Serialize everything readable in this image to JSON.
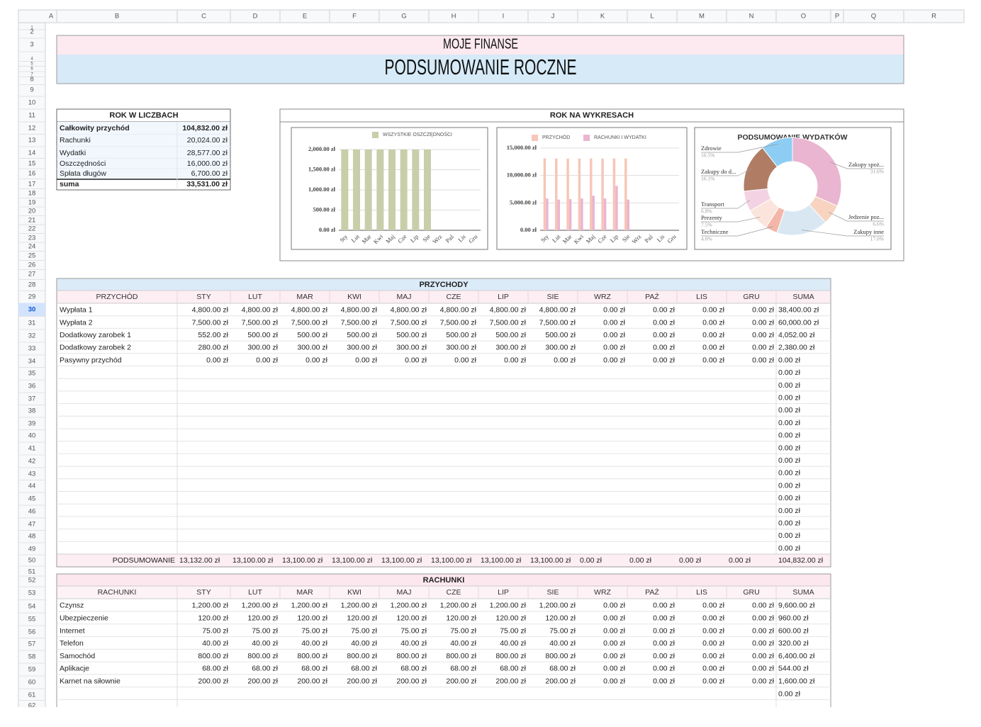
{
  "column_headers": [
    "A",
    "B",
    "C",
    "D",
    "E",
    "F",
    "G",
    "H",
    "I",
    "J",
    "K",
    "L",
    "M",
    "N",
    "O",
    "P",
    "Q",
    "R"
  ],
  "row_headers": [
    1,
    2,
    3,
    4,
    5,
    6,
    7,
    8,
    9,
    10,
    11,
    12,
    13,
    14,
    15,
    16,
    17,
    18,
    19,
    20,
    21,
    22,
    23,
    24,
    25,
    26,
    27,
    28,
    29,
    30,
    31,
    32,
    33,
    34,
    35,
    36,
    37,
    38,
    39,
    40,
    41,
    42,
    43,
    44,
    45,
    46,
    47,
    48,
    49,
    50,
    51,
    52,
    53,
    54,
    55,
    56,
    57,
    58,
    59,
    60,
    61,
    62
  ],
  "header": {
    "subtitle": "MOJE FINANSE",
    "title": "PODSUMOWANIE ROCZNE"
  },
  "summary": {
    "title": "ROK W LICZBACH",
    "rows": [
      [
        "Całkowity przychód",
        "104,832.00 zł"
      ],
      [
        "Rachunki",
        "20,024.00 zł"
      ],
      [
        "Wydatki",
        "28,577.00 zł"
      ],
      [
        "Oszczędności",
        "16,000.00 zł"
      ],
      [
        "Spłata długów",
        "6,700.00 zł"
      ],
      [
        "suma",
        "33,531.00 zł"
      ]
    ]
  },
  "charts_title": "ROK NA WYKRESACH",
  "charts": [
    {
      "type": "bar",
      "categories": [
        "Sty",
        "Lut",
        "Mar",
        "Kwi",
        "Maj",
        "Cze",
        "Lip",
        "Sie",
        "Wrz",
        "Paź",
        "Lis",
        "Gru"
      ],
      "series": [
        {
          "name": "WSZYSTKIE OSZCZĘDNOŚCI",
          "color": "#c9ceaa",
          "values": [
            2000,
            2000,
            2000,
            2000,
            2000,
            2000,
            2000,
            2000,
            0,
            0,
            0,
            0
          ]
        }
      ],
      "ylim": [
        0,
        2000
      ],
      "yticks": [
        {
          "value": 0,
          "label": "0.00 zł"
        },
        {
          "value": 500,
          "label": "500.00 zł"
        },
        {
          "value": 1000,
          "label": "1,000.00 zł"
        },
        {
          "value": 1500,
          "label": "1,500.00 zł"
        },
        {
          "value": 2000,
          "label": "2,000.00 zł"
        }
      ],
      "grid": true
    },
    {
      "type": "bar",
      "categories": [
        "Sty",
        "Lut",
        "Mar",
        "Kwi",
        "Maj",
        "Cze",
        "Lip",
        "Sie",
        "Wrz",
        "Paź",
        "Lis",
        "Gru"
      ],
      "series": [
        {
          "name": "PRZYCHÓD",
          "color": "#f6c6b8",
          "values": [
            13132,
            13100,
            13100,
            13100,
            13100,
            13100,
            13100,
            13100,
            0,
            0,
            0,
            0
          ]
        },
        {
          "name": "RACHUNKI I WYDATKI",
          "color": "#eab5d0",
          "values": [
            5800,
            5600,
            5700,
            5800,
            6300,
            5800,
            8100,
            5600,
            0,
            0,
            0,
            0
          ]
        }
      ],
      "ylim": [
        0,
        15000
      ],
      "yticks": [
        {
          "value": 0,
          "label": "0.00 zł"
        },
        {
          "value": 5000,
          "label": "5,000.00 zł"
        },
        {
          "value": 10000,
          "label": "10,000.00 zł"
        },
        {
          "value": 15000,
          "label": "15,000.00 zł"
        }
      ],
      "grid": true
    },
    {
      "type": "donut",
      "title": "PODSUMOWANIE WYDATKÓW",
      "categories": [
        "Zakupy spoż...",
        "Jedzenie poz...",
        "Zakupy inne",
        "Techniczne",
        "Prezenty",
        "Transport",
        "Zakupy do d...",
        "Zdrowie"
      ],
      "values": [
        31.6,
        6.6,
        17.0,
        4.0,
        7.5,
        6.8,
        16.1,
        10.5
      ],
      "value_labels": [
        "31.6%",
        "6.6%",
        "17.0%",
        "4.0%",
        "7.5%",
        "6.8%",
        "16.1%",
        "10.5%"
      ],
      "colors": [
        "#eab5d0",
        "#f7d3c0",
        "#d9e7f3",
        "#f4b6a8",
        "#fbe4dc",
        "#f3d3e3",
        "#b07d64",
        "#8dcdf3"
      ]
    }
  ],
  "income": {
    "title": "PRZYCHODY",
    "header": [
      "PRZYCHÓD",
      "STY",
      "LUT",
      "MAR",
      "KWI",
      "MAJ",
      "CZE",
      "LIP",
      "SIE",
      "WRZ",
      "PAŹ",
      "LIS",
      "GRU",
      "SUMA"
    ],
    "rows": [
      [
        "Wypłata 1",
        "4,800.00 zł",
        "4,800.00 zł",
        "4,800.00 zł",
        "4,800.00 zł",
        "4,800.00 zł",
        "4,800.00 zł",
        "4,800.00 zł",
        "4,800.00 zł",
        "0.00 zł",
        "0.00 zł",
        "0.00 zł",
        "0.00 zł",
        "38,400.00 zł"
      ],
      [
        "Wypłata 2",
        "7,500.00 zł",
        "7,500.00 zł",
        "7,500.00 zł",
        "7,500.00 zł",
        "7,500.00 zł",
        "7,500.00 zł",
        "7,500.00 zł",
        "7,500.00 zł",
        "0.00 zł",
        "0.00 zł",
        "0.00 zł",
        "0.00 zł",
        "60,000.00 zł"
      ],
      [
        "Dodatkowy zarobek 1",
        "552.00 zł",
        "500.00 zł",
        "500.00 zł",
        "500.00 zł",
        "500.00 zł",
        "500.00 zł",
        "500.00 zł",
        "500.00 zł",
        "0.00 zł",
        "0.00 zł",
        "0.00 zł",
        "0.00 zł",
        "4,052.00 zł"
      ],
      [
        "Dodatkowy zarobek 2",
        "280.00 zł",
        "300.00 zł",
        "300.00 zł",
        "300.00 zł",
        "300.00 zł",
        "300.00 zł",
        "300.00 zł",
        "300.00 zł",
        "0.00 zł",
        "0.00 zł",
        "0.00 zł",
        "0.00 zł",
        "2,380.00 zł"
      ],
      [
        "Pasywny przychód",
        "0.00 zł",
        "0.00 zł",
        "0.00 zł",
        "0.00 zł",
        "0.00 zł",
        "0.00 zł",
        "0.00 zł",
        "0.00 zł",
        "0.00 zł",
        "0.00 zł",
        "0.00 zł",
        "0.00 zł",
        "0.00 zł"
      ]
    ],
    "empty_sums": [
      "0.00 zł",
      "0.00 zł",
      "0.00 zł",
      "0.00 zł",
      "0.00 zł",
      "0.00 zł",
      "0.00 zł",
      "0.00 zł",
      "0.00 zł",
      "0.00 zł",
      "0.00 zł",
      "0.00 zł",
      "0.00 zł",
      "0.00 zł",
      "0.00 zł"
    ],
    "total": [
      "PODSUMOWANIE",
      "13,132.00 zł",
      "13,100.00 zł",
      "13,100.00 zł",
      "13,100.00 zł",
      "13,100.00 zł",
      "13,100.00 zł",
      "13,100.00 zł",
      "13,100.00 zł",
      "0.00 zł",
      "0.00 zł",
      "0.00 zł",
      "0.00 zł",
      "104,832.00 zł"
    ]
  },
  "bills": {
    "title": "RACHUNKI",
    "header": [
      "RACHUNKI",
      "STY",
      "LUT",
      "MAR",
      "KWI",
      "MAJ",
      "CZE",
      "LIP",
      "SIE",
      "WRZ",
      "PAŹ",
      "LIS",
      "GRU",
      "SUMA"
    ],
    "rows": [
      [
        "Czynsz",
        "1,200.00 zł",
        "1,200.00 zł",
        "1,200.00 zł",
        "1,200.00 zł",
        "1,200.00 zł",
        "1,200.00 zł",
        "1,200.00 zł",
        "1,200.00 zł",
        "0.00 zł",
        "0.00 zł",
        "0.00 zł",
        "0.00 zł",
        "9,600.00 zł"
      ],
      [
        "Ubezpieczenie",
        "120.00 zł",
        "120.00 zł",
        "120.00 zł",
        "120.00 zł",
        "120.00 zł",
        "120.00 zł",
        "120.00 zł",
        "120.00 zł",
        "0.00 zł",
        "0.00 zł",
        "0.00 zł",
        "0.00 zł",
        "960.00 zł"
      ],
      [
        "Internet",
        "75.00 zł",
        "75.00 zł",
        "75.00 zł",
        "75.00 zł",
        "75.00 zł",
        "75.00 zł",
        "75.00 zł",
        "75.00 zł",
        "0.00 zł",
        "0.00 zł",
        "0.00 zł",
        "0.00 zł",
        "600.00 zł"
      ],
      [
        "Telefon",
        "40.00 zł",
        "40.00 zł",
        "40.00 zł",
        "40.00 zł",
        "40.00 zł",
        "40.00 zł",
        "40.00 zł",
        "40.00 zł",
        "0.00 zł",
        "0.00 zł",
        "0.00 zł",
        "0.00 zł",
        "320.00 zł"
      ],
      [
        "Samochód",
        "800.00 zł",
        "800.00 zł",
        "800.00 zł",
        "800.00 zł",
        "800.00 zł",
        "800.00 zł",
        "800.00 zł",
        "800.00 zł",
        "0.00 zł",
        "0.00 zł",
        "0.00 zł",
        "0.00 zł",
        "6,400.00 zł"
      ],
      [
        "Aplikacje",
        "68.00 zł",
        "68.00 zł",
        "68.00 zł",
        "68.00 zł",
        "68.00 zł",
        "68.00 zł",
        "68.00 zł",
        "68.00 zł",
        "0.00 zł",
        "0.00 zł",
        "0.00 zł",
        "0.00 zł",
        "544.00 zł"
      ],
      [
        "Karnet na siłownie",
        "200.00 zł",
        "200.00 zł",
        "200.00 zł",
        "200.00 zł",
        "200.00 zł",
        "200.00 zł",
        "200.00 zł",
        "200.00 zł",
        "0.00 zł",
        "0.00 zł",
        "0.00 zł",
        "0.00 zł",
        "1,600.00 zł"
      ]
    ],
    "empty_sums": [
      "0.00 zł"
    ]
  }
}
